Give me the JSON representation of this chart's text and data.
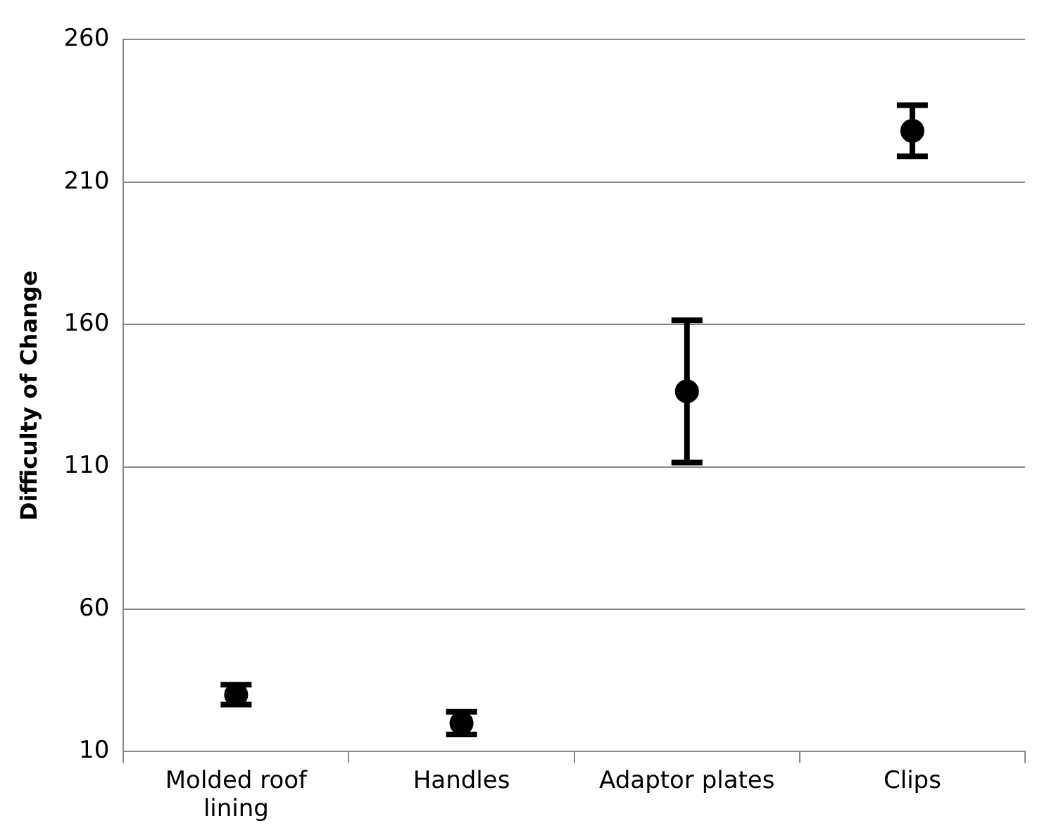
{
  "chart_data": {
    "type": "scatter",
    "ylabel": "Difficulty of Change",
    "categories": [
      "Molded roof lining",
      "Handles",
      "Adaptor plates",
      "Clips"
    ],
    "series": [
      {
        "color": "#000000",
        "values": [
          30,
          20,
          136.5,
          228
        ],
        "errors": [
          3.5,
          4,
          25,
          9
        ]
      }
    ],
    "ylim": [
      10,
      260
    ],
    "yticks": [
      10,
      60,
      110,
      160,
      210,
      260
    ],
    "grid": "y",
    "legend": false,
    "marker": "circle"
  }
}
